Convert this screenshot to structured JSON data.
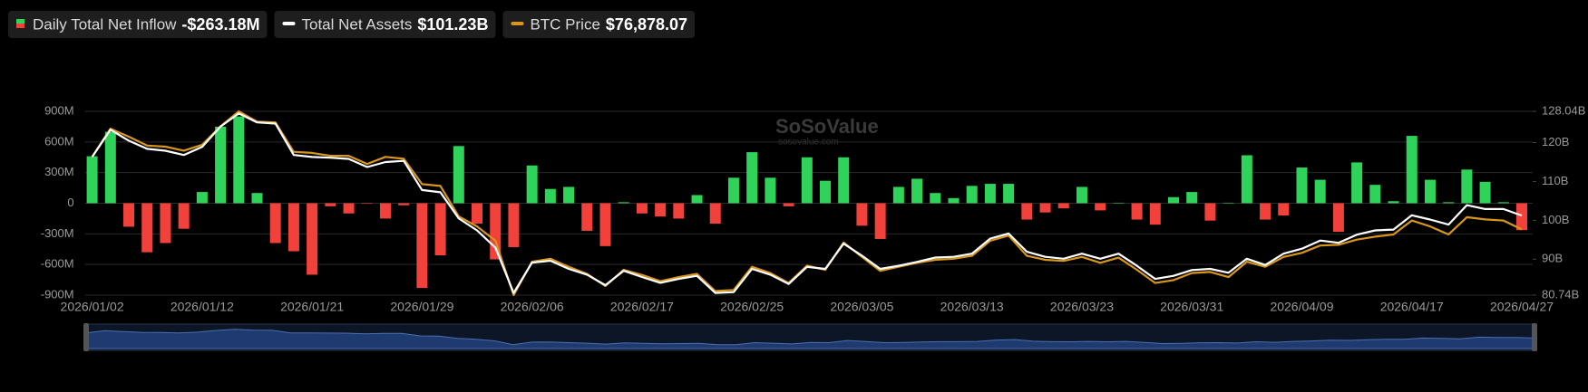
{
  "chart_data": {
    "type": "combo",
    "watermark": "SoSoValue",
    "watermark_url": "sosovalue.com",
    "categories": [
      "2026/01/02",
      null,
      null,
      null,
      null,
      null,
      "2026/01/12",
      null,
      null,
      null,
      null,
      null,
      "2026/01/21",
      null,
      null,
      null,
      null,
      null,
      "2026/01/29",
      null,
      null,
      null,
      null,
      null,
      "2026/02/06",
      null,
      null,
      null,
      null,
      null,
      "2026/02/17",
      null,
      null,
      null,
      null,
      null,
      "2026/02/25",
      null,
      null,
      null,
      null,
      null,
      "2026/03/05",
      null,
      null,
      null,
      null,
      null,
      "2026/03/13",
      null,
      null,
      null,
      null,
      null,
      "2026/03/23",
      null,
      null,
      null,
      null,
      null,
      "2026/03/31",
      null,
      null,
      null,
      null,
      null,
      "2026/04/09",
      null,
      null,
      null,
      null,
      null,
      "2026/04/17",
      null,
      null,
      null,
      null,
      null,
      "2026/04/27"
    ],
    "series": [
      {
        "name": "Daily Total Net Inflow",
        "type": "bar",
        "color": "#2fd35a",
        "negative_color": "#f2413a",
        "legend_value": "-$263.18M",
        "values": [
          460,
          700,
          -230,
          -480,
          -390,
          -250,
          110,
          750,
          850,
          100,
          -390,
          -470,
          -700,
          -30,
          -100,
          -5,
          -150,
          -20,
          -830,
          -510,
          560,
          -200,
          -550,
          -430,
          370,
          140,
          160,
          -270,
          -420,
          10,
          -100,
          -130,
          -150,
          80,
          -200,
          250,
          500,
          250,
          -30,
          450,
          220,
          450,
          -220,
          -350,
          160,
          240,
          100,
          50,
          170,
          190,
          190,
          -160,
          -90,
          -50,
          160,
          -70,
          5,
          -160,
          -210,
          60,
          110,
          -170,
          5,
          470,
          -160,
          -120,
          350,
          230,
          -280,
          400,
          180,
          20,
          660,
          230,
          10,
          330,
          210,
          10,
          -263.18
        ]
      },
      {
        "name": "Total Net Assets",
        "type": "line",
        "axis": "y2",
        "color": "#ffffff",
        "legend_value": "$101.23B",
        "values": [
          116.3,
          123.3,
          120.5,
          118.4,
          117.9,
          116.8,
          118.9,
          124.1,
          127.5,
          125.2,
          124.9,
          116.8,
          116.3,
          116.1,
          115.8,
          113.7,
          115.0,
          115.3,
          107.8,
          107.2,
          100.5,
          97.4,
          93.0,
          81.3,
          89.1,
          89.6,
          87.5,
          86.0,
          83.3,
          87.0,
          85.4,
          83.9,
          84.9,
          85.7,
          81.3,
          81.5,
          87.5,
          86.0,
          83.6,
          88.0,
          87.5,
          94.0,
          90.9,
          87.5,
          88.3,
          89.3,
          90.4,
          90.6,
          91.4,
          95.3,
          96.6,
          91.9,
          90.6,
          90.1,
          91.4,
          90.1,
          91.4,
          88.3,
          84.9,
          85.7,
          87.2,
          87.5,
          86.5,
          90.1,
          88.5,
          91.4,
          92.7,
          94.8,
          94.2,
          96.3,
          97.4,
          97.6,
          101.3,
          100.2,
          98.9,
          103.9,
          102.9,
          102.9,
          101.23
        ]
      },
      {
        "name": "BTC Price",
        "type": "line",
        "axis": "y3",
        "color": "#d8961c",
        "legend_value": "$76,878.07",
        "values": [
          96600,
          104300,
          102100,
          99700,
          99400,
          98300,
          99900,
          104900,
          109000,
          106200,
          106000,
          98000,
          97700,
          96900,
          96900,
          94700,
          96600,
          96100,
          89200,
          88700,
          80400,
          77700,
          73800,
          59000,
          68100,
          68900,
          66700,
          64800,
          61500,
          65900,
          64500,
          62800,
          63900,
          64800,
          60100,
          60400,
          66700,
          65000,
          62300,
          67000,
          65900,
          73300,
          69400,
          65600,
          66700,
          67800,
          68600,
          68900,
          69700,
          73800,
          75200,
          69700,
          68600,
          68300,
          69400,
          67800,
          69200,
          65900,
          62300,
          63100,
          65000,
          65300,
          63900,
          68100,
          66700,
          69400,
          70500,
          72500,
          72700,
          74100,
          74900,
          75500,
          79300,
          77700,
          75500,
          80200,
          79600,
          79300,
          76878.07
        ]
      }
    ],
    "ylim": [
      -900,
      900
    ],
    "yticks": [
      {
        "value": -900,
        "label": "-900M"
      },
      {
        "value": -600,
        "label": "-600M"
      },
      {
        "value": -300,
        "label": "-300M"
      },
      0,
      {
        "value": 300,
        "label": "300M"
      },
      {
        "value": 600,
        "label": "600M"
      },
      {
        "value": 900,
        "label": "900M"
      }
    ],
    "y2lim": [
      80.74,
      128.04
    ],
    "y2ticks": [
      {
        "value": 80.74,
        "label": "80.74B"
      },
      {
        "value": 90,
        "label": "90B"
      },
      {
        "value": 100,
        "label": "100B"
      },
      {
        "value": 110,
        "label": "110B"
      },
      {
        "value": 120,
        "label": "120B"
      },
      {
        "value": 128.04,
        "label": "128.04B"
      }
    ],
    "y3lim": [
      59000,
      109000
    ],
    "grid": true
  }
}
